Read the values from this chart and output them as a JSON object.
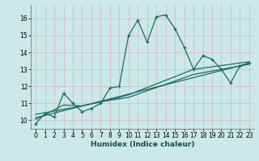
{
  "title": "",
  "xlabel": "Humidex (Indice chaleur)",
  "ylabel": "",
  "bg_color": "#cce8e8",
  "grid_color": "#b8d4d4",
  "line_color": "#1a6b6b",
  "xlim": [
    -0.5,
    23.5
  ],
  "ylim": [
    9.5,
    16.8
  ],
  "xticks": [
    0,
    1,
    2,
    3,
    4,
    5,
    6,
    7,
    8,
    9,
    10,
    11,
    12,
    13,
    14,
    15,
    16,
    17,
    18,
    19,
    20,
    21,
    22,
    23
  ],
  "yticks": [
    10,
    11,
    12,
    13,
    14,
    15,
    16
  ],
  "series1_x": [
    0,
    1,
    2,
    3,
    4,
    5,
    6,
    7,
    8,
    9,
    10,
    11,
    12,
    13,
    14,
    15,
    16,
    17,
    18,
    19,
    20,
    21,
    22,
    23
  ],
  "series1_y": [
    9.8,
    10.4,
    10.2,
    11.6,
    11.0,
    10.5,
    10.7,
    11.0,
    11.9,
    12.0,
    15.0,
    15.9,
    14.6,
    16.1,
    16.2,
    15.4,
    14.3,
    13.0,
    13.8,
    13.6,
    13.0,
    12.2,
    13.2,
    13.4
  ],
  "series2_x": [
    0,
    23
  ],
  "series2_y": [
    10.15,
    13.35
  ],
  "series3_x": [
    0,
    5,
    8,
    10,
    17,
    23
  ],
  "series3_y": [
    10.35,
    10.85,
    11.2,
    11.5,
    13.0,
    13.45
  ],
  "series4_x": [
    0,
    3,
    5,
    7,
    10,
    17,
    23
  ],
  "series4_y": [
    10.05,
    10.9,
    10.85,
    11.1,
    11.35,
    12.7,
    13.3
  ]
}
